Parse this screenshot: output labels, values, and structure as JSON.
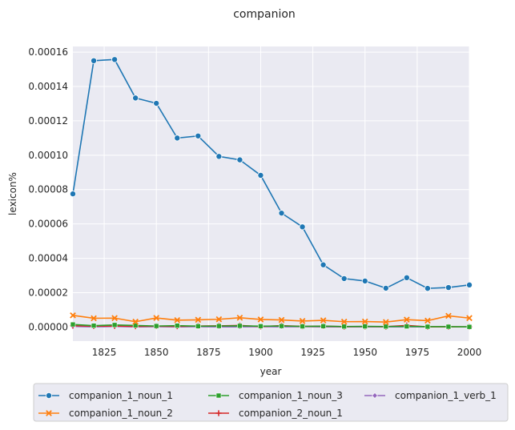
{
  "chart_data": {
    "type": "line",
    "title": "companion",
    "xlabel": "year",
    "ylabel": "lexicon%",
    "xlim": [
      1810,
      2000
    ],
    "ylim": [
      -8.2e-06,
      0.0001633
    ],
    "xticks": [
      1825,
      1850,
      1875,
      1900,
      1925,
      1950,
      1975,
      2000
    ],
    "xtick_labels": [
      "1825",
      "1850",
      "1875",
      "1900",
      "1925",
      "1950",
      "1975",
      "2000"
    ],
    "yticks": [
      0,
      2e-05,
      4e-05,
      6e-05,
      8e-05,
      0.0001,
      0.00012,
      0.00014,
      0.00016
    ],
    "ytick_labels": [
      "0.00000",
      "0.00002",
      "0.00004",
      "0.00006",
      "0.00008",
      "0.00010",
      "0.00012",
      "0.00014",
      "0.00016"
    ],
    "grid": true,
    "legend_position": "bottom-center",
    "x": [
      1810,
      1820,
      1830,
      1840,
      1850,
      1860,
      1870,
      1880,
      1890,
      1900,
      1910,
      1920,
      1930,
      1940,
      1950,
      1960,
      1970,
      1980,
      1990,
      2000
    ],
    "series": [
      {
        "name": "companion_1_noun_1",
        "color": "#1f77b4",
        "marker": "circle",
        "values": [
          7.75e-05,
          0.000155,
          0.0001557,
          0.0001333,
          0.0001302,
          0.00011,
          0.0001112,
          9.93e-05,
          9.73e-05,
          8.83e-05,
          6.63e-05,
          5.83e-05,
          3.62e-05,
          2.82e-05,
          2.68e-05,
          2.26e-05,
          2.87e-05,
          2.25e-05,
          2.3e-05,
          2.45e-05
        ]
      },
      {
        "name": "companion_1_noun_2",
        "color": "#ff7f0e",
        "marker": "x",
        "values": [
          6.8e-06,
          5.1e-06,
          5.2e-06,
          3.1e-06,
          5.3e-06,
          4e-06,
          4.2e-06,
          4.5e-06,
          5.4e-06,
          4.4e-06,
          4.1e-06,
          3.5e-06,
          3.9e-06,
          3.1e-06,
          3.2e-06,
          2.9e-06,
          4.3e-06,
          3.7e-06,
          6.5e-06,
          5.2e-06
        ]
      },
      {
        "name": "companion_1_noun_3",
        "color": "#2ca02c",
        "marker": "square",
        "values": [
          1.5e-06,
          8e-07,
          1.2e-06,
          9e-07,
          6e-07,
          8e-07,
          5e-07,
          6e-07,
          7e-07,
          5e-07,
          6e-07,
          4e-07,
          5e-07,
          3e-07,
          4e-07,
          3e-07,
          4e-07,
          2e-07,
          2e-07,
          1e-07
        ]
      },
      {
        "name": "companion_2_noun_1",
        "color": "#d62728",
        "marker": "plus",
        "values": [
          8e-07,
          5e-07,
          6e-07,
          4e-07,
          5e-07,
          4e-07,
          6e-07,
          7e-07,
          9e-07,
          3e-07,
          8e-07,
          4e-07,
          5e-07,
          2e-07,
          3e-07,
          2e-07,
          9e-07,
          1e-07,
          1e-07,
          1e-07
        ]
      },
      {
        "name": "companion_1_verb_1",
        "color": "#9467bd",
        "marker": "diamond",
        "values": [
          3e-07,
          1e-07,
          3e-07,
          1e-07,
          2e-07,
          1e-07,
          2e-07,
          1e-07,
          1e-07,
          2e-07,
          1e-07,
          2e-07,
          1e-07,
          1e-07,
          1e-07,
          1e-07,
          1e-07,
          1e-07,
          1e-07,
          1e-07
        ]
      }
    ]
  }
}
